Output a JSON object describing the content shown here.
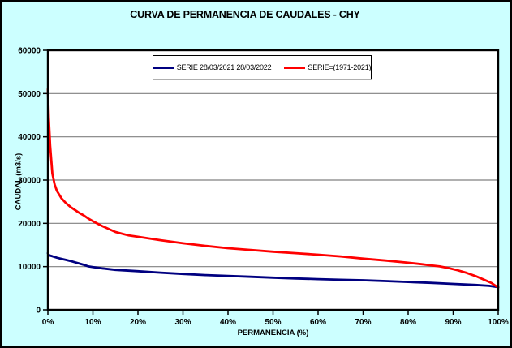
{
  "window": {
    "title": "CURVA DE PERMANENCIA DE CAUDALES - CHY"
  },
  "colors": {
    "background": "#CCFFFF",
    "plot_background": "#FFFFFF",
    "gridline": "#808080",
    "axis": "#000000",
    "series_blue": "#000080",
    "series_red": "#FF0000"
  },
  "chart_data": {
    "type": "line",
    "title": "CURVA DE PERMANENCIA DE CAUDALES - CHY",
    "xlabel": "PERMANENCIA (%)",
    "ylabel": "CAUDAL (m3/s)",
    "xlim": [
      0,
      100
    ],
    "ylim": [
      0,
      60000
    ],
    "grid": "horizontal-only",
    "legend_position": "top-center-inside",
    "x_tick_values": [
      0,
      10,
      20,
      30,
      40,
      50,
      60,
      70,
      80,
      90,
      100
    ],
    "x_tick_labels": [
      "0%",
      "10%",
      "20%",
      "30%",
      "40%",
      "50%",
      "60%",
      "70%",
      "80%",
      "90%",
      "100%"
    ],
    "y_tick_values": [
      0,
      10000,
      20000,
      30000,
      40000,
      50000,
      60000
    ],
    "y_tick_labels": [
      "0",
      "10000",
      "20000",
      "30000",
      "40000",
      "50000",
      "60000"
    ],
    "series": [
      {
        "name": "SERIE 28/03/2021 28/03/2022",
        "color": "#000080",
        "x": [
          0,
          0.2,
          0.5,
          1,
          2,
          3,
          4,
          5,
          6,
          7,
          8,
          9,
          10,
          12,
          15,
          20,
          25,
          30,
          35,
          40,
          45,
          50,
          55,
          60,
          65,
          70,
          75,
          80,
          85,
          90,
          95,
          98,
          100
        ],
        "y": [
          13100,
          12700,
          12550,
          12400,
          12050,
          11800,
          11550,
          11300,
          11000,
          10700,
          10400,
          10050,
          9900,
          9600,
          9250,
          8950,
          8600,
          8300,
          8050,
          7850,
          7650,
          7450,
          7250,
          7100,
          6950,
          6850,
          6650,
          6450,
          6250,
          6000,
          5750,
          5550,
          5250
        ]
      },
      {
        "name": "SERIE=(1971-2021)",
        "color": "#FF0000",
        "x": [
          0,
          0.2,
          0.5,
          1,
          1.5,
          2,
          3,
          4,
          5,
          6,
          7,
          8,
          9,
          10,
          12,
          15,
          18,
          20,
          25,
          30,
          35,
          40,
          45,
          50,
          55,
          60,
          65,
          70,
          75,
          80,
          83,
          85,
          87,
          89,
          91,
          93,
          95,
          97,
          98.5,
          100
        ],
        "y": [
          51000,
          44500,
          38000,
          31500,
          29000,
          27500,
          25800,
          24700,
          23800,
          23100,
          22400,
          21800,
          21100,
          20500,
          19400,
          18000,
          17200,
          16900,
          16100,
          15400,
          14800,
          14250,
          13850,
          13450,
          13100,
          12750,
          12350,
          11850,
          11400,
          10900,
          10550,
          10300,
          10050,
          9650,
          9150,
          8550,
          7800,
          6900,
          6200,
          5150
        ]
      }
    ]
  }
}
